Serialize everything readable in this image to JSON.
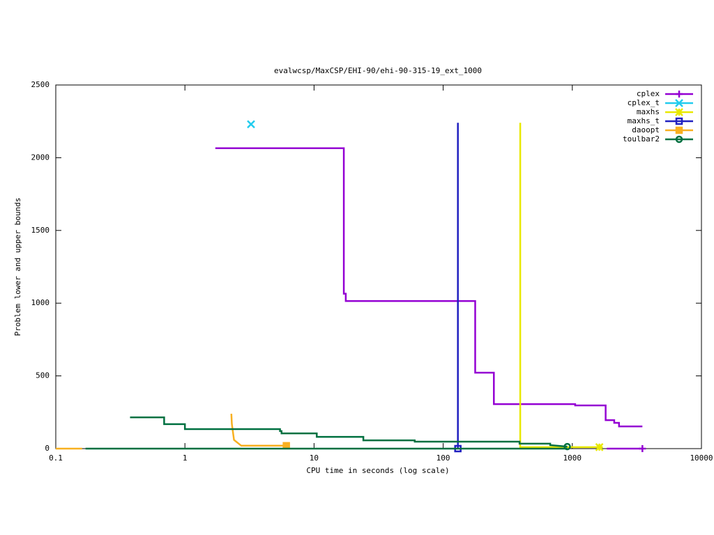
{
  "chart_data": {
    "type": "line",
    "title": "evalwcsp/MaxCSP/EHI-90/ehi-90-315-19_ext_1000",
    "xlabel": "CPU time in seconds (log scale)",
    "ylabel": "Problem lower and upper bounds",
    "xlog": true,
    "xlim": [
      0.1,
      10000
    ],
    "xticks": [
      0.1,
      1,
      10,
      100,
      1000,
      10000
    ],
    "ylim": [
      0,
      2500
    ],
    "yticks": [
      0,
      500,
      1000,
      1500,
      2000,
      2500
    ],
    "grid": false,
    "legend": "top-right",
    "series": [
      {
        "name": "cplex",
        "color": "#9400d3",
        "marker": "plus",
        "x": [
          1.72,
          17.0,
          17.0,
          17.6,
          17.6,
          177,
          177,
          247,
          247,
          1052,
          1052,
          1811,
          1811,
          2112,
          2112,
          2300,
          2300,
          3490,
          null,
          1850,
          3490
        ],
        "values": [
          2065,
          2065,
          1065,
          1065,
          1015,
          1015,
          522,
          522,
          306,
          306,
          297,
          297,
          196,
          196,
          177,
          177,
          153,
          153,
          null,
          0,
          0
        ]
      },
      {
        "name": "cplex_t",
        "color": "#22ccee",
        "marker": "cross",
        "x": [
          3.2,
          3.25
        ],
        "values": [
          2230,
          2230
        ]
      },
      {
        "name": "maxhs",
        "color": "#e8e800",
        "marker": "star",
        "x": [
          395,
          395,
          1620
        ],
        "values": [
          2240,
          10,
          10
        ]
      },
      {
        "name": "maxhs_t",
        "color": "#2020c0",
        "marker": "open-square",
        "x": [
          130,
          130
        ],
        "values": [
          2240,
          0
        ]
      },
      {
        "name": "daoopt",
        "color": "#f8b020",
        "marker": "filled-square",
        "x": [
          0.1,
          0.16,
          null,
          2.29,
          2.31,
          2.4,
          2.73,
          6.1
        ],
        "values": [
          0,
          0,
          null,
          240,
          170,
          60,
          20,
          20
        ]
      },
      {
        "name": "toulbar2",
        "color": "#007040",
        "marker": "circle",
        "x": [
          0.17,
          914,
          null,
          0.376,
          0.69,
          0.69,
          1.0,
          1.0,
          5.45,
          5.45,
          5.6,
          5.6,
          10.5,
          10.5,
          24.1,
          24.1,
          60.2,
          60.2,
          390,
          390,
          674,
          674,
          914
        ],
        "values": [
          0,
          0,
          null,
          215,
          215,
          168,
          168,
          134,
          134,
          120,
          120,
          105,
          105,
          81,
          81,
          57,
          57,
          48,
          48,
          34,
          34,
          24,
          14
        ]
      }
    ]
  }
}
